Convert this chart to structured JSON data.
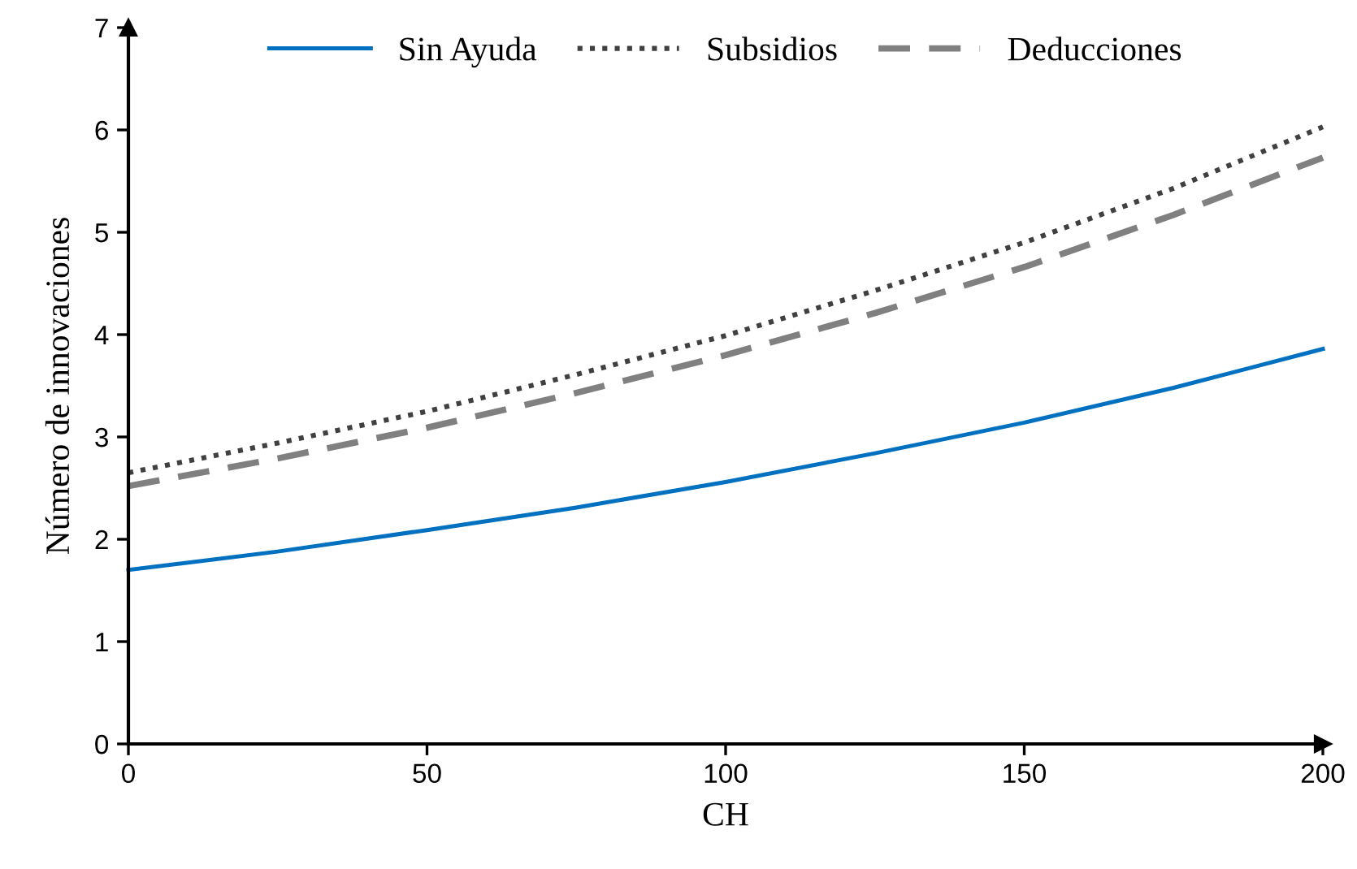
{
  "chart_data": {
    "type": "line",
    "xlabel": "CH",
    "ylabel": "Número de innovaciones",
    "x": [
      0,
      25,
      50,
      75,
      100,
      125,
      150,
      175,
      200
    ],
    "series": [
      {
        "name": "Sin Ayuda",
        "color": "#0070c0",
        "line_style": "solid",
        "values": [
          1.7,
          1.88,
          2.09,
          2.31,
          2.56,
          2.84,
          3.14,
          3.48,
          3.86
        ]
      },
      {
        "name": "Subsidios",
        "color": "#404040",
        "line_style": "dotted",
        "values": [
          2.65,
          2.94,
          3.25,
          3.61,
          3.99,
          4.43,
          4.9,
          5.43,
          6.03
        ]
      },
      {
        "name": "Deducciones",
        "color": "#808080",
        "line_style": "dashed",
        "values": [
          2.52,
          2.79,
          3.09,
          3.43,
          3.8,
          4.21,
          4.66,
          5.17,
          5.73
        ]
      }
    ],
    "xlim": [
      0,
      200
    ],
    "xticks": [
      0,
      50,
      100,
      150,
      200
    ],
    "ylim": [
      0,
      7
    ],
    "yticks": [
      0,
      1,
      2,
      3,
      4,
      5,
      6,
      7
    ],
    "grid": false,
    "legend": "top",
    "marker": "none"
  }
}
